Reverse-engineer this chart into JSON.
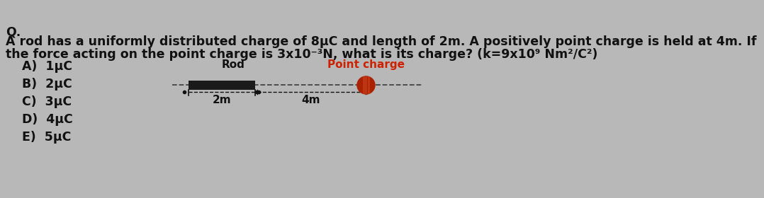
{
  "bg_color": "#b8b8b8",
  "title_q": "Q.",
  "line1": "A rod has a uniformly distributed charge of 8μC and length of 2m. A positively point charge is held at 4m. If",
  "line2": "the force acting on the point charge is 3x10⁻³N, what is its charge? (k=9x10⁹ Nm²/C²)",
  "options": [
    "A)  1μC",
    "B)  2μC",
    "C)  3μC",
    "D)  4μC",
    "E)  5μC"
  ],
  "rod_label": "Rod",
  "point_label": "Point charge",
  "dim_2m": "• 2m ••",
  "dim_4m": "••––––– 4m –––––•",
  "rod_color": "#1a1a1a",
  "line_color": "#444444",
  "point_color_outer": "#aa2200",
  "point_color_inner": "#cc3300",
  "text_color": "#111111",
  "red_label_color": "#cc2200",
  "font_size_body": 12.5,
  "font_size_options": 12.5,
  "font_size_diagram": 11
}
